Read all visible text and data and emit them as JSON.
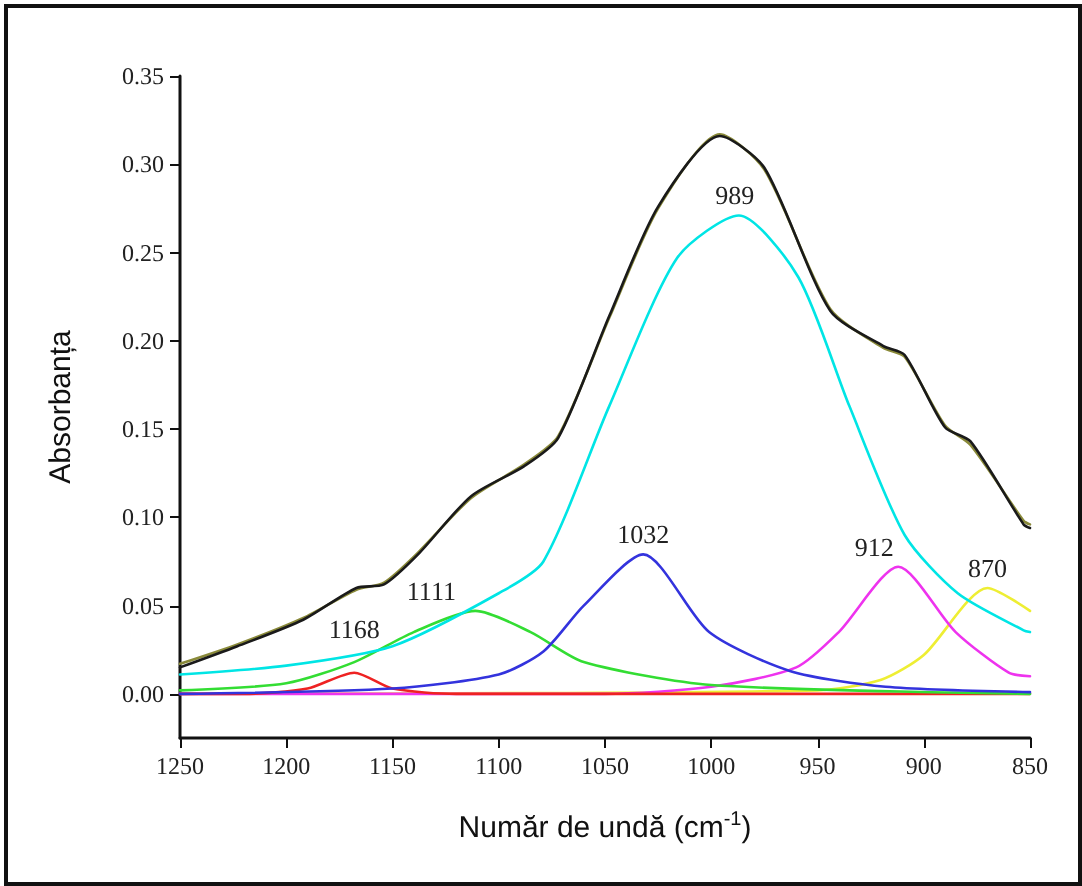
{
  "chart_data": {
    "type": "line",
    "xlabel": "Număr de undă (cm$^{-1}$)",
    "ylabel": "Absorbanța",
    "xlim": [
      1250,
      850
    ],
    "xticks": [
      1250,
      1200,
      1150,
      1100,
      1050,
      1000,
      950,
      900,
      850
    ],
    "ylim": [
      -0.025,
      0.35
    ],
    "yticks": [
      {
        "value": 0,
        "label": "0.00"
      },
      {
        "value": 0.05,
        "label": "0.05"
      },
      {
        "value": 0.1,
        "label": "0.10"
      },
      {
        "value": 0.15,
        "label": "0.15"
      },
      {
        "value": 0.2,
        "label": "0.20"
      },
      {
        "value": 0.25,
        "label": "0.25"
      },
      {
        "value": 0.3,
        "label": "0.30"
      },
      {
        "value": 0.35,
        "label": "0.35"
      }
    ],
    "grid": false,
    "marker": "none",
    "line_style": "solid",
    "series": [
      {
        "color": "#1a1a1a",
        "x": [
          1250,
          1223,
          1192,
          1167,
          1154,
          1138,
          1113,
          1088,
          1072,
          1048,
          1025,
          996,
          975,
          944,
          919,
          909,
          890,
          878,
          853,
          850
        ],
        "values": [
          0.015,
          0.027,
          0.042,
          0.06,
          0.062,
          0.079,
          0.112,
          0.129,
          0.145,
          0.214,
          0.276,
          0.316,
          0.298,
          0.217,
          0.197,
          0.192,
          0.151,
          0.143,
          0.096,
          0.094
        ]
      },
      {
        "color": "#8a8a3a",
        "x": [
          1250,
          1223,
          1192,
          1167,
          1154,
          1138,
          1113,
          1088,
          1072,
          1048,
          1025,
          996,
          975,
          944,
          919,
          909,
          890,
          878,
          853,
          850
        ],
        "values": [
          0.017,
          0.028,
          0.043,
          0.059,
          0.063,
          0.08,
          0.111,
          0.13,
          0.146,
          0.213,
          0.275,
          0.317,
          0.297,
          0.218,
          0.196,
          0.191,
          0.152,
          0.141,
          0.098,
          0.096
        ]
      },
      {
        "color": "#00e5e5",
        "x": [
          1250,
          1200,
          1150,
          1100,
          1079,
          1048,
          1016,
          987,
          959,
          935,
          909,
          884,
          853,
          850
        ],
        "values": [
          0.011,
          0.016,
          0.027,
          0.057,
          0.075,
          0.163,
          0.247,
          0.271,
          0.236,
          0.163,
          0.09,
          0.057,
          0.036,
          0.035
        ]
      },
      {
        "color": "#3333dd",
        "x": [
          1250,
          1150,
          1100,
          1079,
          1060,
          1032,
          1001,
          963,
          918,
          850
        ],
        "values": [
          0,
          0.003,
          0.011,
          0.024,
          0.05,
          0.079,
          0.035,
          0.013,
          0.004,
          0.001
        ]
      },
      {
        "color": "#33dd33",
        "x": [
          1250,
          1200,
          1168,
          1140,
          1111,
          1085,
          1060,
          1000,
          850
        ],
        "values": [
          0.002,
          0.006,
          0.018,
          0.035,
          0.047,
          0.035,
          0.018,
          0.005,
          0
        ]
      },
      {
        "color": "#ee2222",
        "x": [
          1250,
          1220,
          1190,
          1168,
          1150,
          1120,
          850
        ],
        "values": [
          0,
          0,
          0.003,
          0.012,
          0.003,
          0,
          0
        ]
      },
      {
        "color": "#ee33ee",
        "x": [
          1250,
          1050,
          1000,
          960,
          940,
          912,
          885,
          860,
          850
        ],
        "values": [
          0,
          0,
          0.004,
          0.015,
          0.035,
          0.072,
          0.035,
          0.012,
          0.01
        ]
      },
      {
        "color": "#eeee33",
        "x": [
          1250,
          950,
          920,
          900,
          870,
          850
        ],
        "values": [
          0,
          0.002,
          0.008,
          0.022,
          0.06,
          0.047
        ]
      }
    ],
    "annotations": [
      {
        "text": "989",
        "x": 989,
        "y": 0.271
      },
      {
        "text": "1032",
        "x": 1032,
        "y": 0.079
      },
      {
        "text": "1111",
        "x": 1111,
        "y": 0.047
      },
      {
        "text": "1168",
        "x": 1168,
        "y": 0.012
      },
      {
        "text": "912",
        "x": 912,
        "y": 0.072
      },
      {
        "text": "870",
        "x": 870,
        "y": 0.06
      }
    ]
  }
}
